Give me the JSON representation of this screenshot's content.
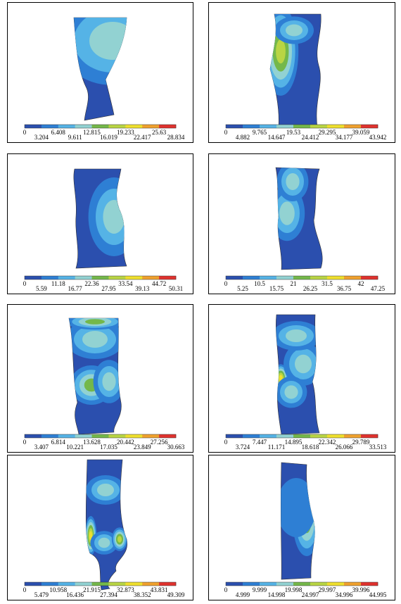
{
  "panels": [
    {
      "legend": [
        0,
        3.204,
        6.408,
        9.611,
        12.815,
        16.019,
        19.233,
        22.417,
        25.63,
        28.834
      ]
    },
    {
      "legend": [
        0,
        4.882,
        9.765,
        14.647,
        19.53,
        24.412,
        29.295,
        34.177,
        39.059,
        43.942
      ]
    },
    {
      "legend": [
        0,
        5.59,
        11.18,
        16.77,
        22.36,
        27.95,
        33.54,
        39.13,
        44.72,
        50.31
      ]
    },
    {
      "legend": [
        0,
        5.25,
        10.5,
        15.75,
        21,
        26.25,
        31.5,
        36.75,
        42,
        47.25
      ]
    },
    {
      "legend": [
        0,
        3.407,
        6.814,
        10.221,
        13.628,
        17.035,
        20.442,
        23.849,
        27.256,
        30.663
      ]
    },
    {
      "legend": [
        0,
        3.724,
        7.447,
        11.171,
        14.895,
        18.618,
        22.342,
        26.066,
        29.789,
        33.513
      ]
    },
    {
      "legend": [
        0,
        5.479,
        10.958,
        16.436,
        21.915,
        27.394,
        32.873,
        38.352,
        43.831,
        49.309
      ]
    },
    {
      "legend": [
        0,
        4.999,
        9.999,
        14.998,
        19.998,
        24.997,
        29.997,
        34.996,
        39.996,
        44.995
      ]
    }
  ]
}
